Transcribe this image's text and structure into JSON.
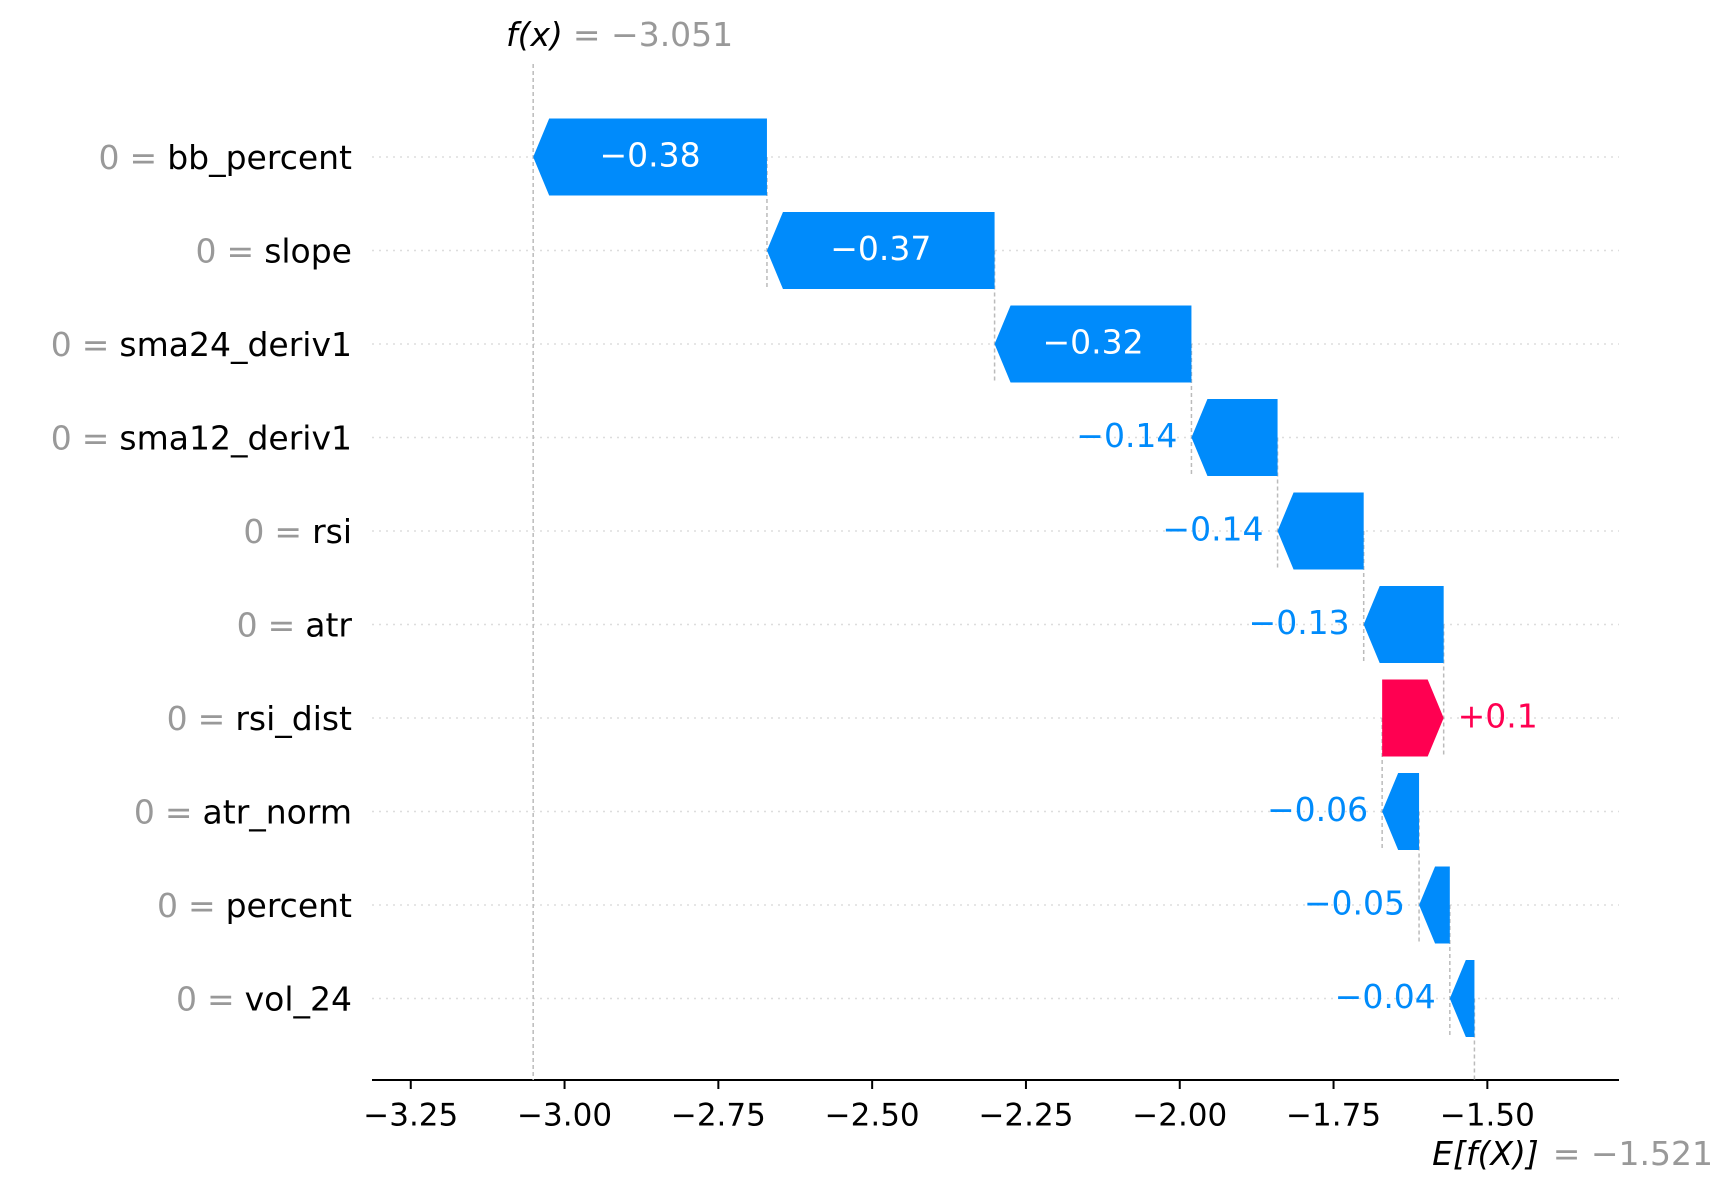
{
  "chart_data": {
    "type": "waterfall",
    "fx_label": "f(x)",
    "fx": -3.051,
    "fx_value_label": "= −3.051",
    "base_label": "E[f(X)]",
    "base": -1.521,
    "base_value_label": "= −1.521",
    "separator": "=",
    "categories": [
      "bb_percent",
      "slope",
      "sma24_deriv1",
      "sma12_deriv1",
      "rsi",
      "atr",
      "rsi_dist",
      "atr_norm",
      "percent",
      "vol_24"
    ],
    "feature_values": [
      0,
      0,
      0,
      0,
      0,
      0,
      0,
      0,
      0,
      0
    ],
    "values": [
      -0.38,
      -0.37,
      -0.32,
      -0.14,
      -0.14,
      -0.13,
      0.1,
      -0.06,
      -0.05,
      -0.04
    ],
    "value_labels": [
      "−0.38",
      "−0.37",
      "−0.32",
      "−0.14",
      "−0.14",
      "−0.13",
      "+0.1",
      "−0.06",
      "−0.05",
      "−0.04"
    ],
    "colors": {
      "negative": "#008bfb",
      "positive": "#ff0051"
    },
    "xlim": [
      -3.313,
      -1.286
    ],
    "xticks": [
      {
        "value": -3.25,
        "label": "−3.25"
      },
      {
        "value": -3.0,
        "label": "−3.00"
      },
      {
        "value": -2.75,
        "label": "−2.75"
      },
      {
        "value": -2.5,
        "label": "−2.50"
      },
      {
        "value": -2.25,
        "label": "−2.25"
      },
      {
        "value": -2.0,
        "label": "−2.00"
      },
      {
        "value": -1.75,
        "label": "−1.75"
      },
      {
        "value": -1.5,
        "label": "−1.50"
      }
    ]
  }
}
